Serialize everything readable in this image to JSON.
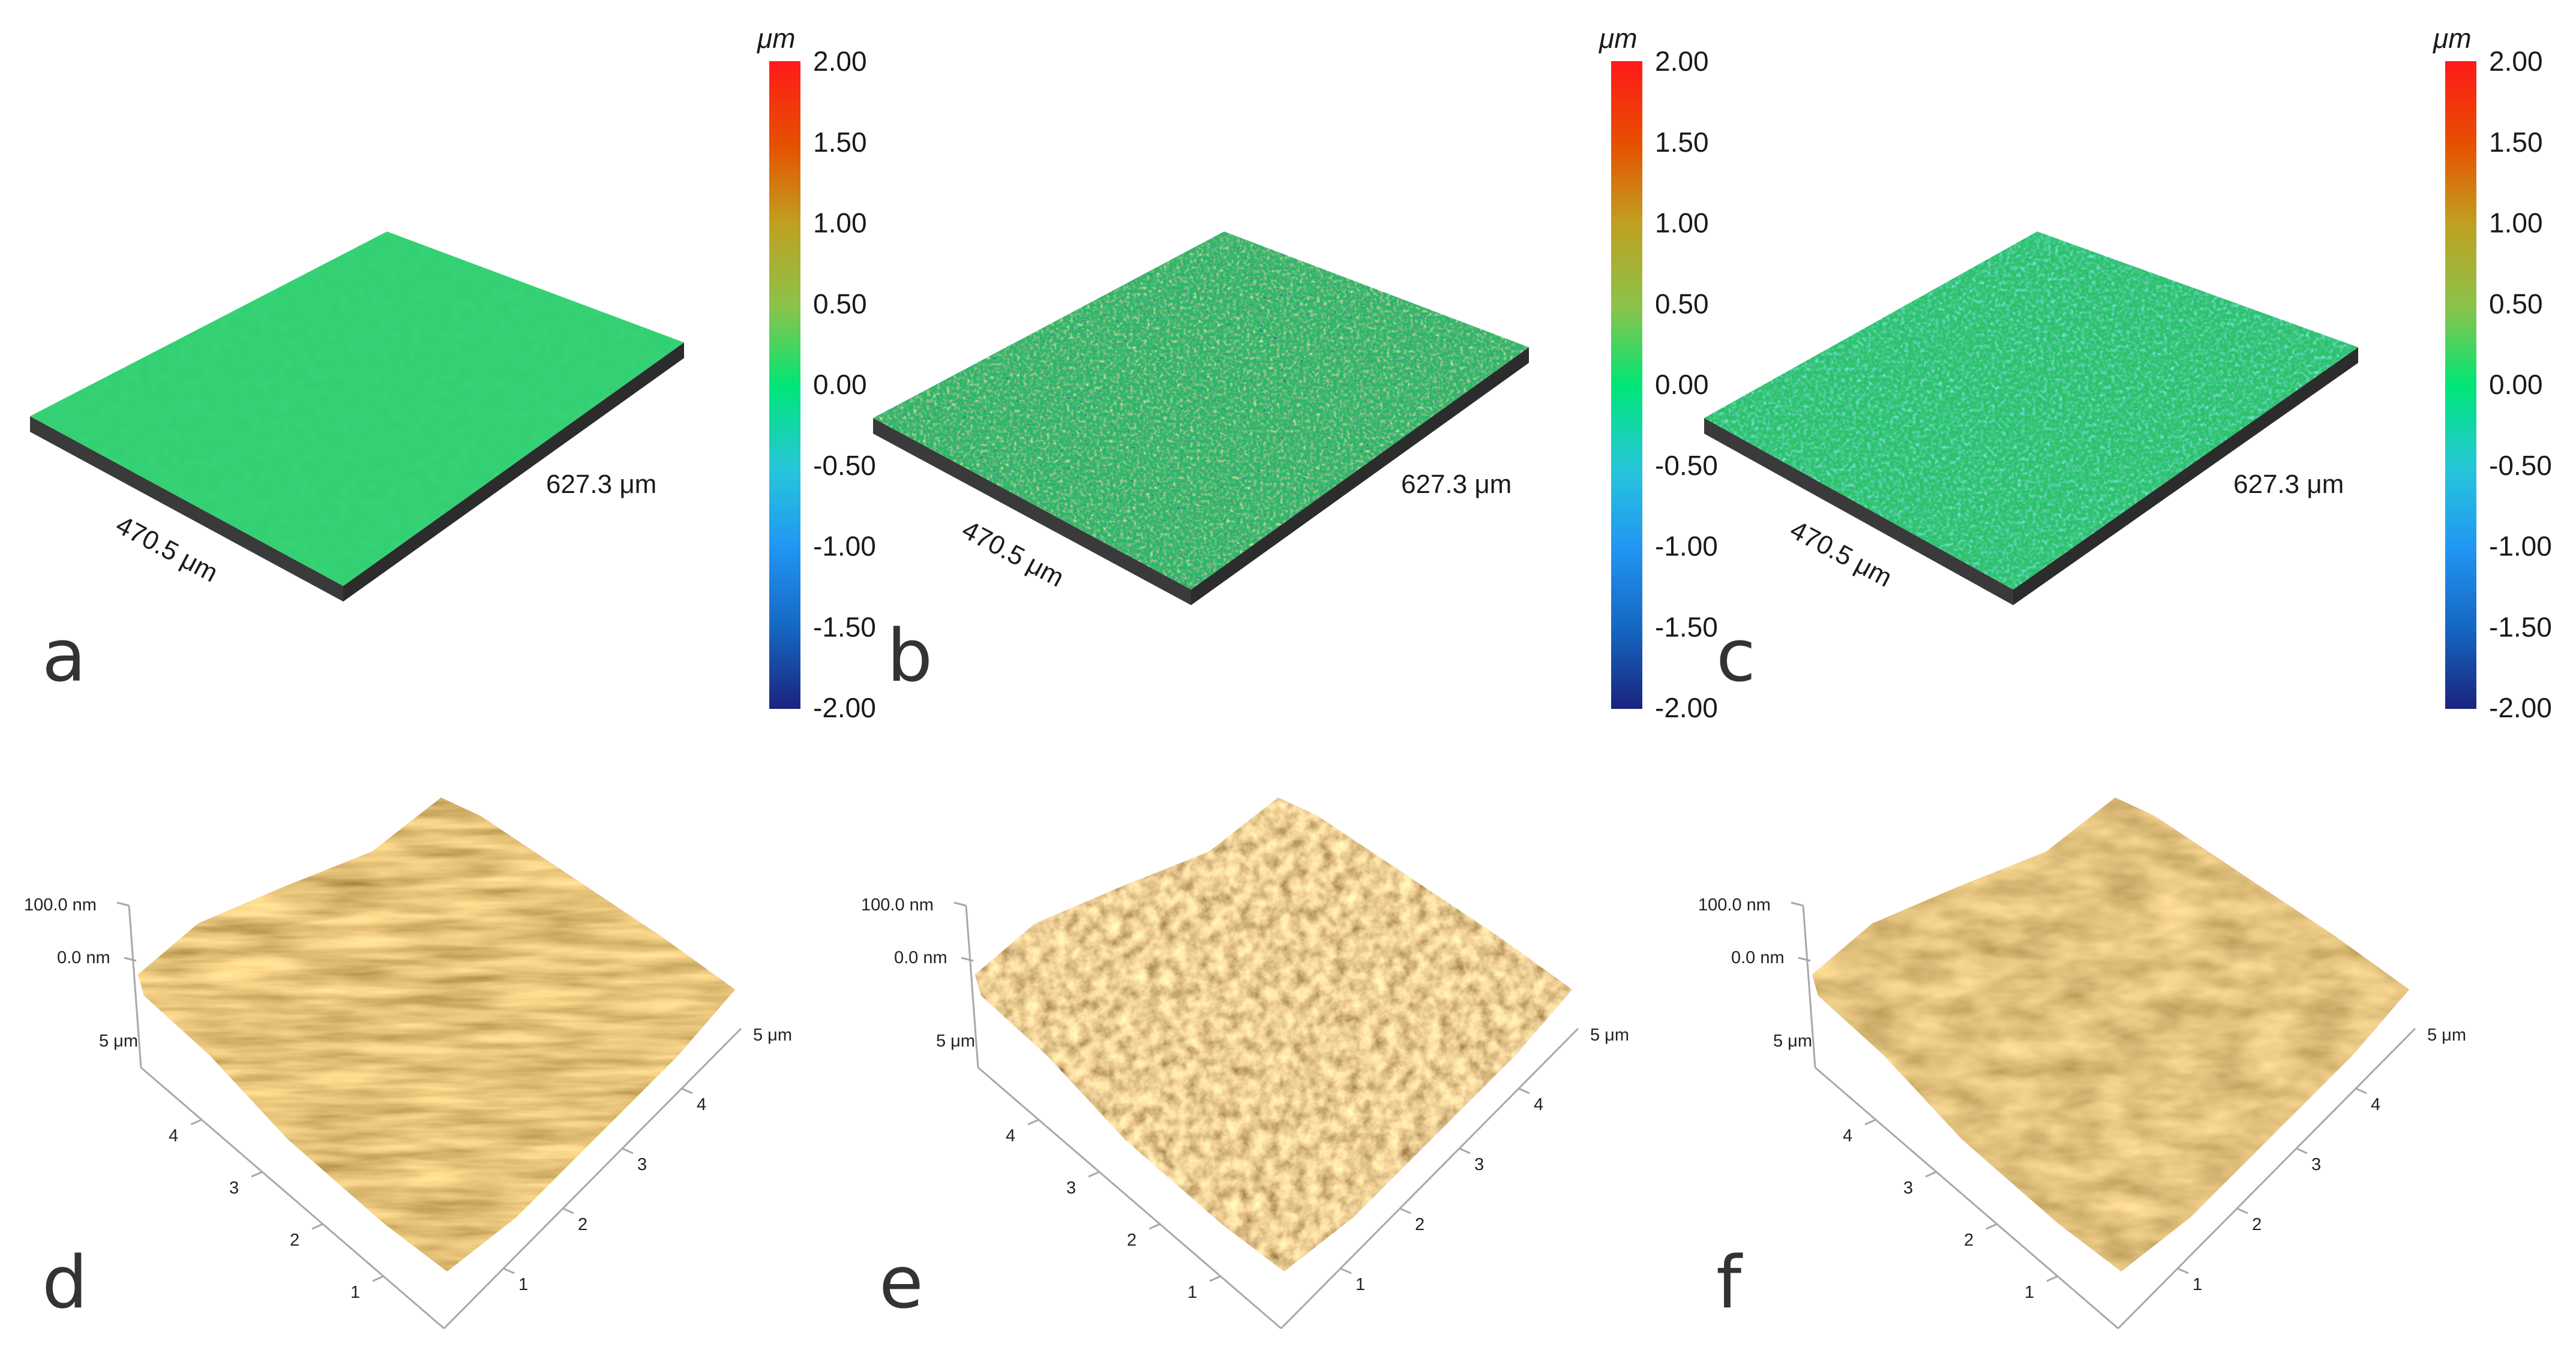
{
  "colors": {
    "surface_green": "#2ecf6e",
    "slab_side": "#3a3a3a",
    "afm_brown": "#b07a2e",
    "afm_light": "#e8c88a",
    "afm_dark": "#6b4210",
    "colorbar": [
      "#1a237e",
      "#1565c0",
      "#2196f3",
      "#26c6da",
      "#00e676",
      "#8bc34a",
      "#c0a020",
      "#e65100",
      "#ff1a1a"
    ]
  },
  "colorbar": {
    "unit": "μm",
    "ticks": [
      "2.00",
      "1.50",
      "1.00",
      "0.50",
      "0.00",
      "-0.50",
      "-1.00",
      "-1.50",
      "-2.00"
    ],
    "range": [
      -2.0,
      2.0
    ]
  },
  "top_panels": [
    {
      "label": "a",
      "width_label": "470.5 μm",
      "length_label": "627.3 μm",
      "texture": "smooth"
    },
    {
      "label": "b",
      "width_label": "470.5 μm",
      "length_label": "627.3 μm",
      "texture": "rough"
    },
    {
      "label": "c",
      "width_label": "470.5 μm",
      "length_label": "627.3 μm",
      "texture": "medium"
    }
  ],
  "bottom_panels": [
    {
      "label": "d",
      "texture": "striated"
    },
    {
      "label": "e",
      "texture": "granular"
    },
    {
      "label": "f",
      "texture": "smooth"
    }
  ],
  "afm_axes": {
    "z_top": "100.0 nm",
    "z_zero": "0.0 nm",
    "left_end": "5 μm",
    "right_end": "5 μm",
    "left_ticks": [
      "4",
      "3",
      "2",
      "1"
    ],
    "right_ticks": [
      "4",
      "3",
      "2",
      "1"
    ]
  }
}
